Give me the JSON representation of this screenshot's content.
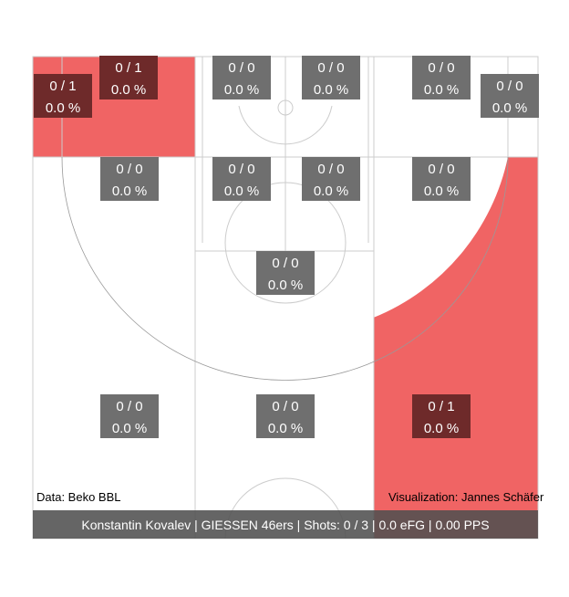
{
  "chart_data": {
    "type": "heatmap",
    "title": "Konstantin Kovalev | GIESSEN 46ers | Shots: 0 / 3 | 0.0 eFG | 0.00 PPS",
    "colors": {
      "hot_fill": "#f06464",
      "label_box": "#6f6f6f",
      "label_box_hot": "#6e2a2a",
      "footer": "#505050"
    },
    "zones": [
      {
        "id": "left-corner-3",
        "made": 0,
        "attempts": 1,
        "pct": 0.0,
        "label": "0 / 1",
        "pct_label": "0.0 %",
        "hot": true
      },
      {
        "id": "left-wing-3-top",
        "made": 0,
        "attempts": 1,
        "pct": 0.0,
        "label": "0 / 1",
        "pct_label": "0.0 %",
        "hot": true
      },
      {
        "id": "left-baseline-mid",
        "made": 0,
        "attempts": 0,
        "pct": 0.0,
        "label": "0 / 0",
        "pct_label": "0.0 %",
        "hot": false
      },
      {
        "id": "right-baseline-mid",
        "made": 0,
        "attempts": 0,
        "pct": 0.0,
        "label": "0 / 0",
        "pct_label": "0.0 %",
        "hot": false
      },
      {
        "id": "right-wing-mid-top",
        "made": 0,
        "attempts": 0,
        "pct": 0.0,
        "label": "0 / 0",
        "pct_label": "0.0 %",
        "hot": false
      },
      {
        "id": "right-corner-3",
        "made": 0,
        "attempts": 0,
        "pct": 0.0,
        "label": "0 / 0",
        "pct_label": "0.0 %",
        "hot": false
      },
      {
        "id": "left-wing-mid",
        "made": 0,
        "attempts": 0,
        "pct": 0.0,
        "label": "0 / 0",
        "pct_label": "0.0 %",
        "hot": false
      },
      {
        "id": "left-paint",
        "made": 0,
        "attempts": 0,
        "pct": 0.0,
        "label": "0 / 0",
        "pct_label": "0.0 %",
        "hot": false
      },
      {
        "id": "right-paint",
        "made": 0,
        "attempts": 0,
        "pct": 0.0,
        "label": "0 / 0",
        "pct_label": "0.0 %",
        "hot": false
      },
      {
        "id": "right-wing-mid",
        "made": 0,
        "attempts": 0,
        "pct": 0.0,
        "label": "0 / 0",
        "pct_label": "0.0 %",
        "hot": false
      },
      {
        "id": "top-key-mid",
        "made": 0,
        "attempts": 0,
        "pct": 0.0,
        "label": "0 / 0",
        "pct_label": "0.0 %",
        "hot": false
      },
      {
        "id": "left-wing-3",
        "made": 0,
        "attempts": 0,
        "pct": 0.0,
        "label": "0 / 0",
        "pct_label": "0.0 %",
        "hot": false
      },
      {
        "id": "top-3",
        "made": 0,
        "attempts": 0,
        "pct": 0.0,
        "label": "0 / 0",
        "pct_label": "0.0 %",
        "hot": false
      },
      {
        "id": "right-wing-3",
        "made": 0,
        "attempts": 1,
        "pct": 0.0,
        "label": "0 / 1",
        "pct_label": "0.0 %",
        "hot": true
      }
    ]
  },
  "credits": {
    "data_source": "Data: Beko BBL",
    "visualization": "Visualization: Jannes Schäfer"
  }
}
